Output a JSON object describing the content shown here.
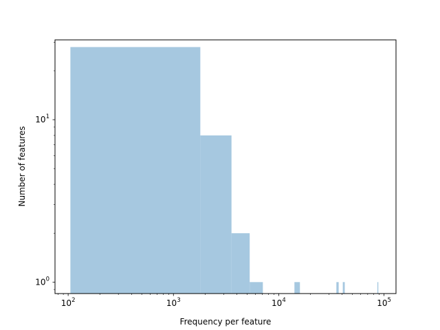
{
  "chart_data": {
    "type": "bar",
    "title": "",
    "xlabel": "Frequency per feature",
    "ylabel": "Number of features",
    "xscale": "log",
    "yscale": "log",
    "xlim": [
      75,
      130000
    ],
    "ylim": [
      0.85,
      31
    ],
    "grid": false,
    "bar_color": "#a6c8e0",
    "x_ticks": [
      {
        "value": 100,
        "base": "10",
        "exp": "2"
      },
      {
        "value": 1000,
        "base": "10",
        "exp": "3"
      },
      {
        "value": 10000,
        "base": "10",
        "exp": "4"
      },
      {
        "value": 100000,
        "base": "10",
        "exp": "5"
      }
    ],
    "y_ticks": [
      {
        "value": 1,
        "base": "10",
        "exp": "0"
      },
      {
        "value": 10,
        "base": "10",
        "exp": "1"
      }
    ],
    "bins": [
      {
        "x0": 105,
        "x1": 1800,
        "count": 28
      },
      {
        "x0": 1800,
        "x1": 3560,
        "count": 8
      },
      {
        "x0": 3560,
        "x1": 5300,
        "count": 2
      },
      {
        "x0": 5300,
        "x1": 7070,
        "count": 1
      },
      {
        "x0": 14100,
        "x1": 15900,
        "count": 1
      },
      {
        "x0": 35300,
        "x1": 37100,
        "count": 1
      },
      {
        "x0": 40600,
        "x1": 42400,
        "count": 1
      },
      {
        "x0": 86500,
        "x1": 88300,
        "count": 1
      }
    ]
  }
}
